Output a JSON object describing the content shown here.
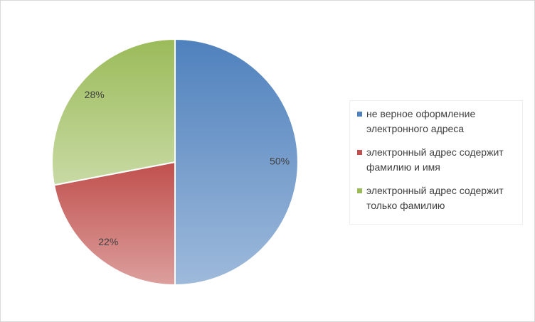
{
  "chart_data": {
    "type": "pie",
    "categories": [
      "не верное оформление электронного адреса",
      "электронный адрес содержит фамилию и имя",
      "электронный адрес содержит только фамилию"
    ],
    "values": [
      50,
      22,
      28
    ],
    "value_labels": [
      "50%",
      "22%",
      "28%"
    ],
    "colors": [
      "#4f81bd",
      "#c0504d",
      "#9bbb59"
    ],
    "legend": "right"
  }
}
